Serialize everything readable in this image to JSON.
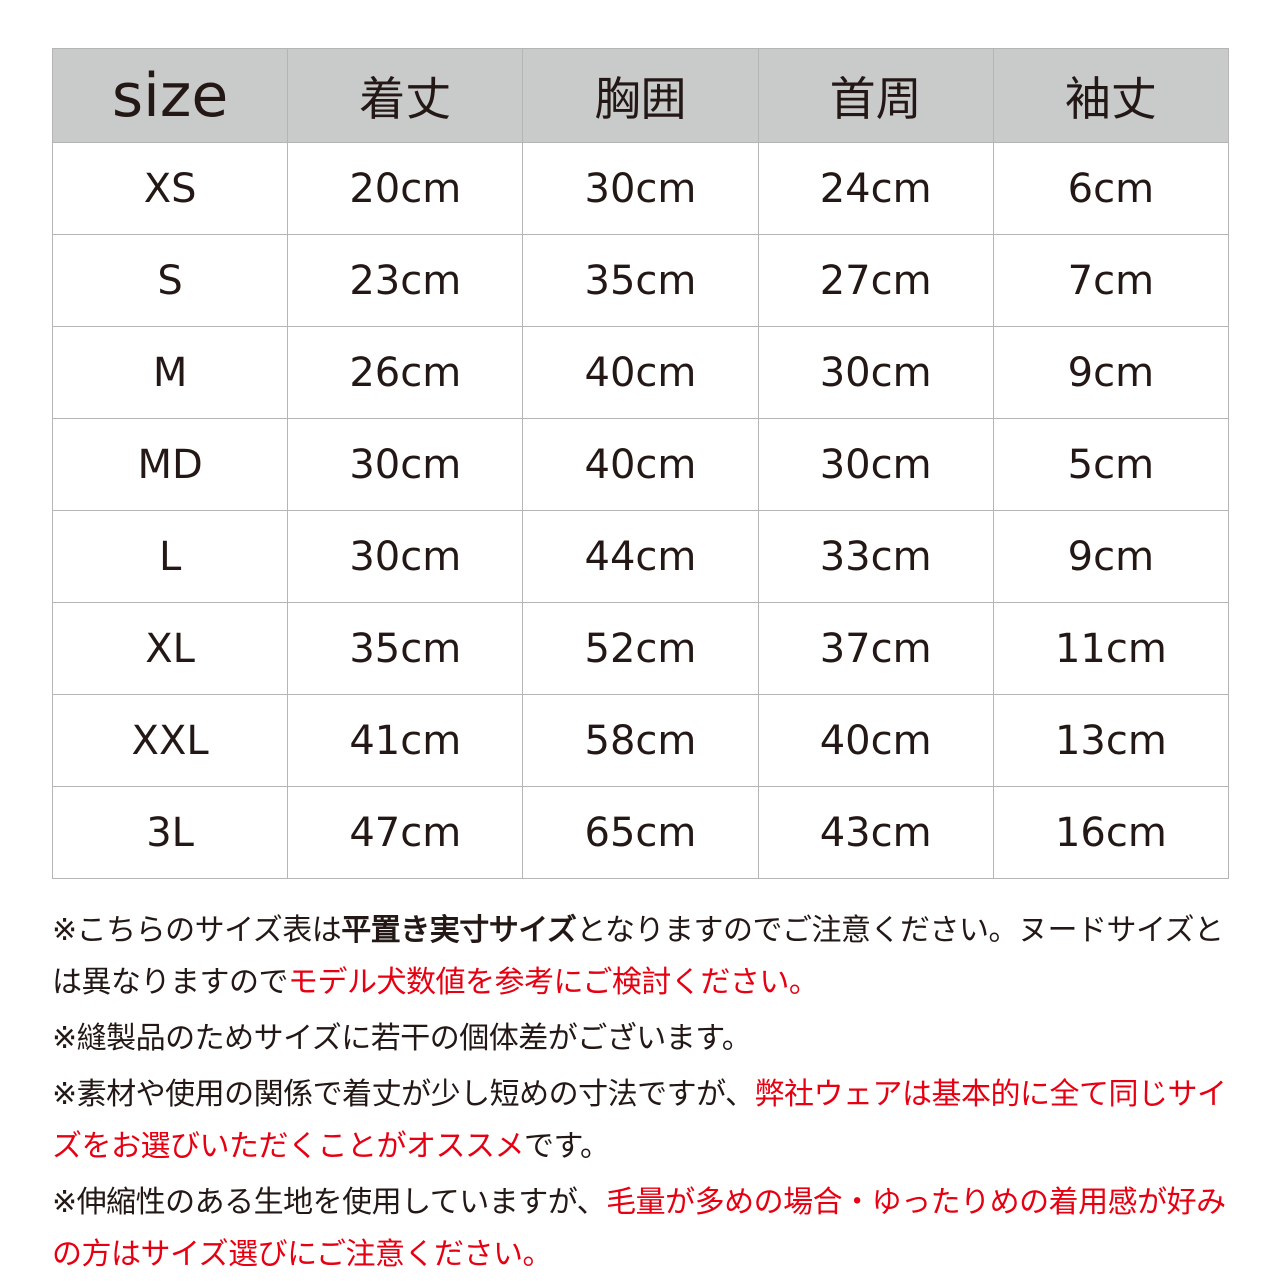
{
  "table": {
    "headers": [
      "size",
      "着丈",
      "胸囲",
      "首周",
      "袖丈"
    ],
    "rows": [
      [
        "XS",
        "20cm",
        "30cm",
        "24cm",
        "6cm"
      ],
      [
        "S",
        "23cm",
        "35cm",
        "27cm",
        "7cm"
      ],
      [
        "M",
        "26cm",
        "40cm",
        "30cm",
        "9cm"
      ],
      [
        "MD",
        "30cm",
        "40cm",
        "30cm",
        "5cm"
      ],
      [
        "L",
        "30cm",
        "44cm",
        "33cm",
        "9cm"
      ],
      [
        "XL",
        "35cm",
        "52cm",
        "37cm",
        "11cm"
      ],
      [
        "XXL",
        "41cm",
        "58cm",
        "40cm",
        "13cm"
      ],
      [
        "3L",
        "47cm",
        "65cm",
        "43cm",
        "16cm"
      ]
    ]
  },
  "notes": [
    {
      "segments": [
        {
          "text": "※こちらのサイズ表は",
          "style": "normal"
        },
        {
          "text": "平置き実寸サイズ",
          "style": "bold"
        },
        {
          "text": "となりますのでご注意ください。ヌードサイズとは異なりますので",
          "style": "normal"
        },
        {
          "text": "モデル犬数値を参考にご検討ください。",
          "style": "red"
        }
      ]
    },
    {
      "segments": [
        {
          "text": "※縫製品のためサイズに若干の個体差がございます。",
          "style": "normal"
        }
      ]
    },
    {
      "segments": [
        {
          "text": "※素材や使用の関係で着丈が少し短めの寸法ですが、",
          "style": "normal"
        },
        {
          "text": "弊社ウェアは基本的に全て同じサイズをお選びいただくことがオススメ",
          "style": "red"
        },
        {
          "text": "です。",
          "style": "normal"
        }
      ]
    },
    {
      "segments": [
        {
          "text": "※伸縮性のある生地を使用していますが、",
          "style": "normal"
        },
        {
          "text": "毛量が多めの場合・ゆったりめの着用感が好みの方はサイズ選びにご注意ください。",
          "style": "red"
        }
      ]
    }
  ],
  "colors": {
    "header_bg": "#c9caca",
    "border": "#b5b5b5",
    "accent_red": "#e60012",
    "text": "#231815"
  }
}
